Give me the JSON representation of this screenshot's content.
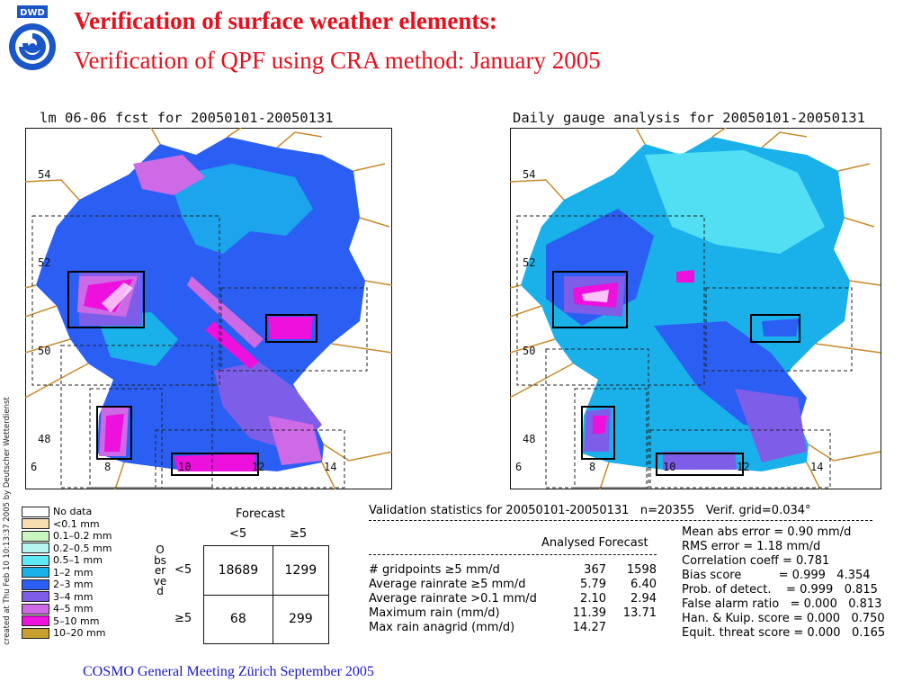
{
  "header": {
    "title_line1": "Verification of surface weather elements:",
    "title_line2": "Verification of QPF using CRA method: January 2005",
    "logo_text": "DWD"
  },
  "maps": [
    {
      "title": "lm 06-06 fcst for 20050101-20050131",
      "lat_labels": [
        "54",
        "52",
        "50",
        "48"
      ],
      "lon_labels": [
        "6",
        "8",
        "10",
        "12",
        "14"
      ]
    },
    {
      "title": "Daily gauge analysis for 20050101-20050131",
      "lat_labels": [
        "54",
        "52",
        "50",
        "48"
      ],
      "lon_labels": [
        "6",
        "8",
        "10",
        "12",
        "14"
      ]
    }
  ],
  "credit": "created at Thu Feb 10 10:13:37 2005 by Deutscher Wetterdienst",
  "legend": [
    {
      "label": "No data",
      "color": "#ffffff"
    },
    {
      "label": "<0.1 mm",
      "color": "#f7deb0"
    },
    {
      "label": "0.1–0.2 mm",
      "color": "#c8f5c0"
    },
    {
      "label": "0.2–0.5 mm",
      "color": "#b4f6f0"
    },
    {
      "label": "0.5–1 mm",
      "color": "#5ee7f4"
    },
    {
      "label": "1–2 mm",
      "color": "#1ab1ea"
    },
    {
      "label": "2–3 mm",
      "color": "#2b5ff4"
    },
    {
      "label": "3–4 mm",
      "color": "#7e5de9"
    },
    {
      "label": "4–5 mm",
      "color": "#cf6ae6"
    },
    {
      "label": "5–10 mm",
      "color": "#ee10dd"
    },
    {
      "label": "10–20 mm",
      "color": "#c8a030"
    }
  ],
  "contingency": {
    "forecast_label": "Forecast",
    "observed_label": "Observed",
    "col_headers": [
      "<5",
      "≥5"
    ],
    "row_headers": [
      "<5",
      "≥5"
    ],
    "cells": [
      [
        "18689",
        "1299"
      ],
      [
        "68",
        "299"
      ]
    ]
  },
  "validation": {
    "header": "Validation statistics for 20050101-20050131   n=20355   Verif. grid=0.034°",
    "col_headers": "Analysed Forecast",
    "rows": [
      {
        "label": "# gridpoints ≥5 mm/d",
        "analysed": "367",
        "forecast": "1598"
      },
      {
        "label": "Average rainrate ≥5 mm/d",
        "analysed": "5.79",
        "forecast": "6.40"
      },
      {
        "label": "Average rainrate >0.1 mm/d",
        "analysed": "2.10",
        "forecast": "2.94"
      },
      {
        "label": "Maximum rain (mm/d)",
        "analysed": "11.39",
        "forecast": "13.71"
      },
      {
        "label": "Max rain anagrid (mm/d)",
        "analysed": "14.27",
        "forecast": ""
      }
    ],
    "scores": [
      "Mean abs error = 0.90 mm/d",
      "RMS error = 1.18 mm/d",
      "Correlation coeff = 0.781",
      "Bias score          = 0.999   4.354",
      "Prob. of detect.    = 0.999   0.815",
      "False alarm ratio   = 0.000   0.813",
      "Han. & Kuip. score = 0.000   0.750",
      "Equit. threat score = 0.000   0.165"
    ]
  },
  "footer": "COSMO General Meeting  Zürich September 2005"
}
